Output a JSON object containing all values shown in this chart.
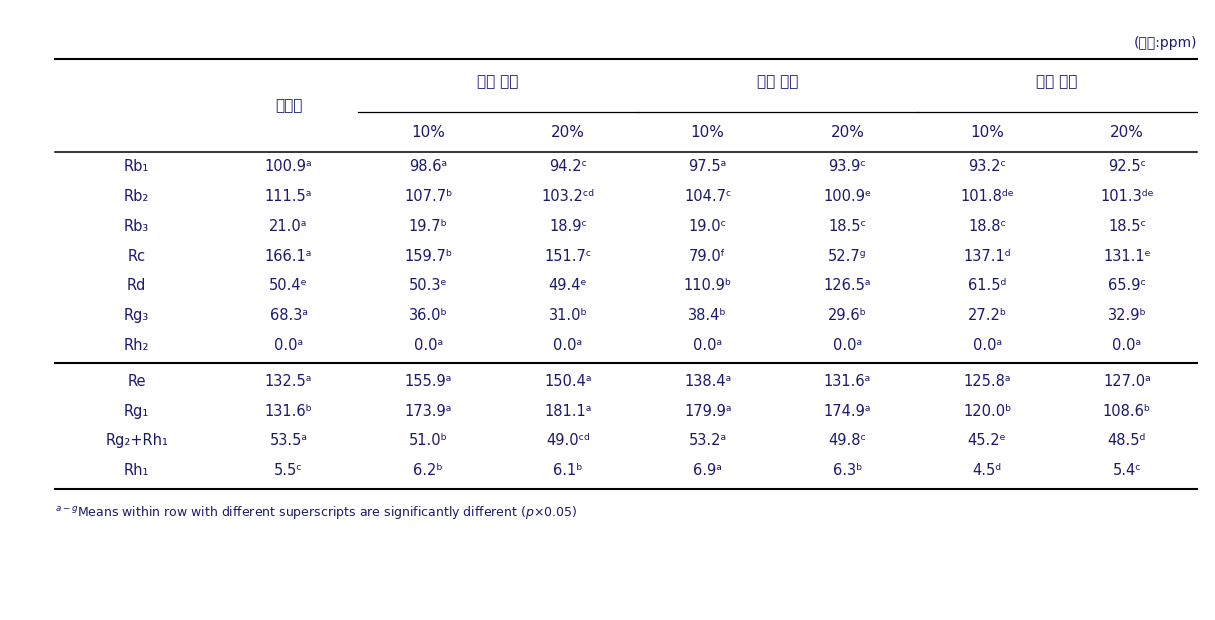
{
  "unit_label": "(단위:ppm)",
  "group_headers": [
    "전북 순창",
    "충남 논산",
    "충남 청양"
  ],
  "col_header_daejo": "대조구",
  "col_subheaders": [
    "10%",
    "20%",
    "10%",
    "20%",
    "10%",
    "20%"
  ],
  "row_labels": [
    "Rb₁",
    "Rb₂",
    "Rb₃",
    "Rc",
    "Rd",
    "Rg₃",
    "Rh₂",
    "Re",
    "Rg₁",
    "Rg₂+Rh₁",
    "Rh₁"
  ],
  "row_data": [
    [
      "100.9ᵃ",
      "98.6ᵃ",
      "94.2ᶜ",
      "97.5ᵃ",
      "93.9ᶜ",
      "93.2ᶜ",
      "92.5ᶜ"
    ],
    [
      "111.5ᵃ",
      "107.7ᵇ",
      "103.2ᶜᵈ",
      "104.7ᶜ",
      "100.9ᵉ",
      "101.8ᵈᵉ",
      "101.3ᵈᵉ"
    ],
    [
      "21.0ᵃ",
      "19.7ᵇ",
      "18.9ᶜ",
      "19.0ᶜ",
      "18.5ᶜ",
      "18.8ᶜ",
      "18.5ᶜ"
    ],
    [
      "166.1ᵃ",
      "159.7ᵇ",
      "151.7ᶜ",
      "79.0ᶠ",
      "52.7ᵍ",
      "137.1ᵈ",
      "131.1ᵉ"
    ],
    [
      "50.4ᵉ",
      "50.3ᵉ",
      "49.4ᵉ",
      "110.9ᵇ",
      "126.5ᵃ",
      "61.5ᵈ",
      "65.9ᶜ"
    ],
    [
      "68.3ᵃ",
      "36.0ᵇ",
      "31.0ᵇ",
      "38.4ᵇ",
      "29.6ᵇ",
      "27.2ᵇ",
      "32.9ᵇ"
    ],
    [
      "0.0ᵃ",
      "0.0ᵃ",
      "0.0ᵃ",
      "0.0ᵃ",
      "0.0ᵃ",
      "0.0ᵃ",
      "0.0ᵃ"
    ],
    [
      "132.5ᵃ",
      "155.9ᵃ",
      "150.4ᵃ",
      "138.4ᵃ",
      "131.6ᵃ",
      "125.8ᵃ",
      "127.0ᵃ"
    ],
    [
      "131.6ᵇ",
      "173.9ᵃ",
      "181.1ᵃ",
      "179.9ᵃ",
      "174.9ᵃ",
      "120.0ᵇ",
      "108.6ᵇ"
    ],
    [
      "53.5ᵃ",
      "51.0ᵇ",
      "49.0ᶜᵈ",
      "53.2ᵃ",
      "49.8ᶜ",
      "45.2ᵉ",
      "48.5ᵈ"
    ],
    [
      "5.5ᶜ",
      "6.2ᵇ",
      "6.1ᵇ",
      "6.9ᵃ",
      "6.3ᵇ",
      "4.5ᵈ",
      "5.4ᶜ"
    ]
  ],
  "footnote": "ᵃ⁻ᵍMeans within row with different superscripts are significantly different (p×0.05)",
  "text_color": "#1a1a6e",
  "footnote_color": "#1a1a6e",
  "line_color": "#000000",
  "background_color": "#ffffff"
}
